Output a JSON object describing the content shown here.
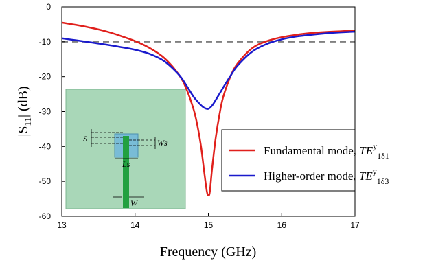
{
  "chart_data": {
    "type": "line",
    "xlabel": "Frequency (GHz)",
    "ylabel": {
      "prefix": "|S",
      "sub": "11",
      "suffix": "| (dB)"
    },
    "xlim": [
      13,
      17
    ],
    "ylim": [
      -60,
      0
    ],
    "xticks": [
      "13",
      "14",
      "15",
      "16",
      "17"
    ],
    "yticks": [
      "0",
      "-10",
      "-20",
      "-30",
      "-40",
      "-50",
      "-60"
    ],
    "reference_line": {
      "y": -10,
      "style": "dashed",
      "color": "#808080"
    },
    "series": [
      {
        "label_text": "Fundamental mode, ",
        "label_mode": "TE",
        "label_sup": "y",
        "label_sub": "1δ1",
        "color": "#e0201c",
        "x": [
          13,
          13.2,
          13.4,
          13.6,
          13.8,
          14,
          14.2,
          14.4,
          14.6,
          14.7,
          14.8,
          14.85,
          14.9,
          14.95,
          14.98,
          15,
          15.02,
          15.05,
          15.1,
          15.15,
          15.2,
          15.3,
          15.4,
          15.6,
          15.8,
          16,
          16.2,
          16.4,
          16.6,
          16.8,
          17
        ],
        "y": [
          -4.5,
          -5.2,
          -6,
          -7,
          -8.3,
          -9.8,
          -11.8,
          -14.7,
          -19.5,
          -23.5,
          -29.5,
          -34,
          -40,
          -48.5,
          -53,
          -54,
          -53,
          -46.5,
          -37.5,
          -31,
          -26,
          -20,
          -16.2,
          -11.8,
          -9.8,
          -8.7,
          -8,
          -7.5,
          -7.2,
          -7,
          -6.8
        ]
      },
      {
        "label_text": "Higher-order mode, ",
        "label_mode": "TE",
        "label_sup": "y",
        "label_sub": "1δ3",
        "color": "#1a1acc",
        "x": [
          13,
          13.2,
          13.4,
          13.6,
          13.8,
          14,
          14.2,
          14.4,
          14.6,
          14.7,
          14.8,
          14.9,
          14.95,
          15,
          15.05,
          15.1,
          15.2,
          15.3,
          15.4,
          15.6,
          15.8,
          16,
          16.2,
          16.4,
          16.6,
          16.8,
          17
        ],
        "y": [
          -9,
          -9.6,
          -10.2,
          -10.8,
          -11.5,
          -12.3,
          -13.5,
          -15.6,
          -19.5,
          -22.5,
          -25.8,
          -28.2,
          -29,
          -29.2,
          -28.3,
          -26.7,
          -23.2,
          -19.8,
          -16.8,
          -12.8,
          -10.6,
          -9.3,
          -8.5,
          -8,
          -7.6,
          -7.3,
          -7.1
        ]
      }
    ],
    "inset": {
      "labels": [
        "S",
        "Ws",
        "Ls",
        "W"
      ]
    }
  }
}
